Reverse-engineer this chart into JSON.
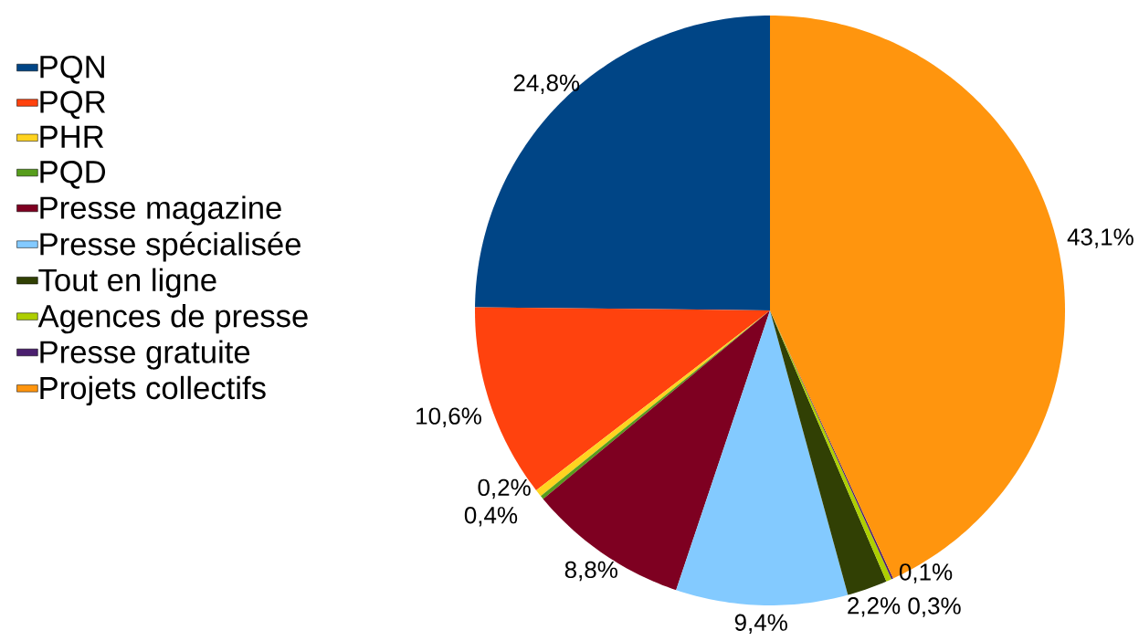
{
  "chart_data": {
    "type": "pie",
    "categories": [
      "PQN",
      "PQR",
      "PHR",
      "PQD",
      "Presse magazine",
      "Presse spécialisée",
      "Tout en ligne",
      "Agences de presse",
      "Presse gratuite",
      "Projets collectifs"
    ],
    "values": [
      24.8,
      10.6,
      0.4,
      0.2,
      8.8,
      9.4,
      2.2,
      0.3,
      0.1,
      43.1
    ],
    "value_labels": [
      "24,8%",
      "10,6%",
      "0,4%",
      "0,2%",
      "8,8%",
      "9,4%",
      "2,2%",
      "0,3%",
      "0,1%",
      "43,1%"
    ],
    "colors": [
      "#004586",
      "#ff420e",
      "#ffd320",
      "#579d1c",
      "#7e0021",
      "#83caff",
      "#314004",
      "#aecf00",
      "#4b1f6f",
      "#ff950e"
    ],
    "legend": "left"
  }
}
